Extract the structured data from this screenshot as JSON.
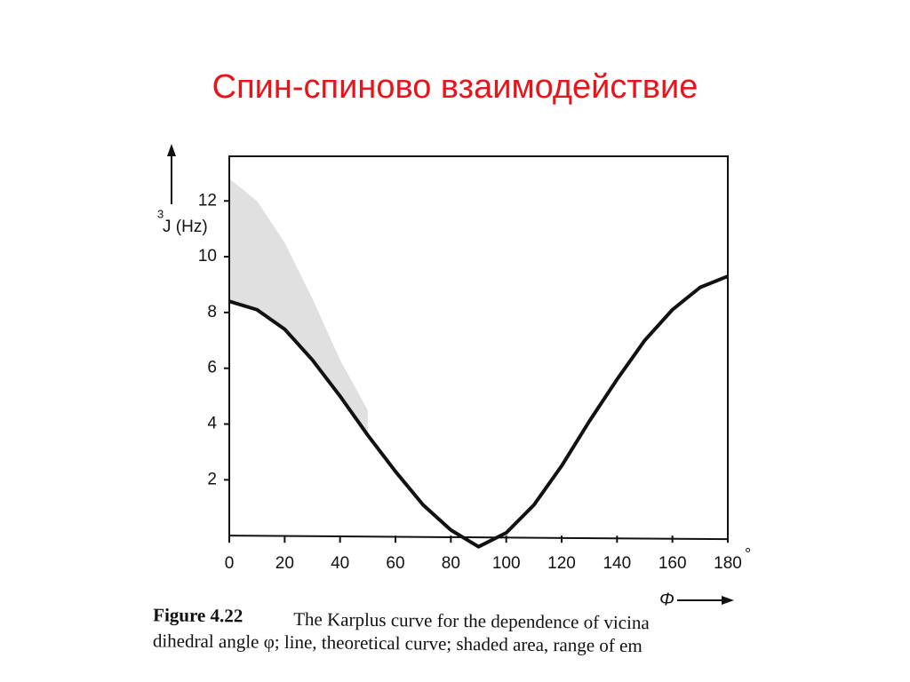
{
  "slide_title": "Спин-спиново взаимодействие",
  "chart_data": {
    "type": "line",
    "ylabel_superscript": "3",
    "ylabel": "J (Hz)",
    "xlabel": "Φ",
    "x_unit": "°",
    "x": [
      0,
      10,
      20,
      30,
      40,
      50,
      60,
      70,
      80,
      90,
      100,
      110,
      120,
      130,
      140,
      150,
      160,
      170,
      180
    ],
    "series": [
      {
        "color": "#111111",
        "values": [
          8.4,
          8.1,
          7.4,
          6.3,
          5.0,
          3.6,
          2.3,
          1.1,
          0.2,
          -0.4,
          0.1,
          1.1,
          2.5,
          4.1,
          5.6,
          7.0,
          8.1,
          8.9,
          9.3
        ]
      }
    ],
    "shaded": {
      "color": "#d8d8d8",
      "x": [
        0,
        10,
        20,
        30,
        40,
        50
      ],
      "upper": [
        12.8,
        12.0,
        10.5,
        8.5,
        6.3,
        4.5
      ],
      "lower": [
        8.4,
        8.1,
        7.4,
        6.3,
        5.0,
        3.6
      ]
    },
    "xlim": [
      0,
      180
    ],
    "xticks": [
      0,
      20,
      40,
      60,
      80,
      100,
      120,
      140,
      160,
      180
    ],
    "ylim": [
      -0.6,
      13.6
    ],
    "yticks": [
      2,
      4,
      6,
      8,
      10,
      12
    ],
    "caption": {
      "figure": "Figure 4.22",
      "line1": "The Karplus curve for the dependence of vicina",
      "line2": "dihedral angle φ; line, theoretical curve; shaded area, range of em"
    }
  }
}
